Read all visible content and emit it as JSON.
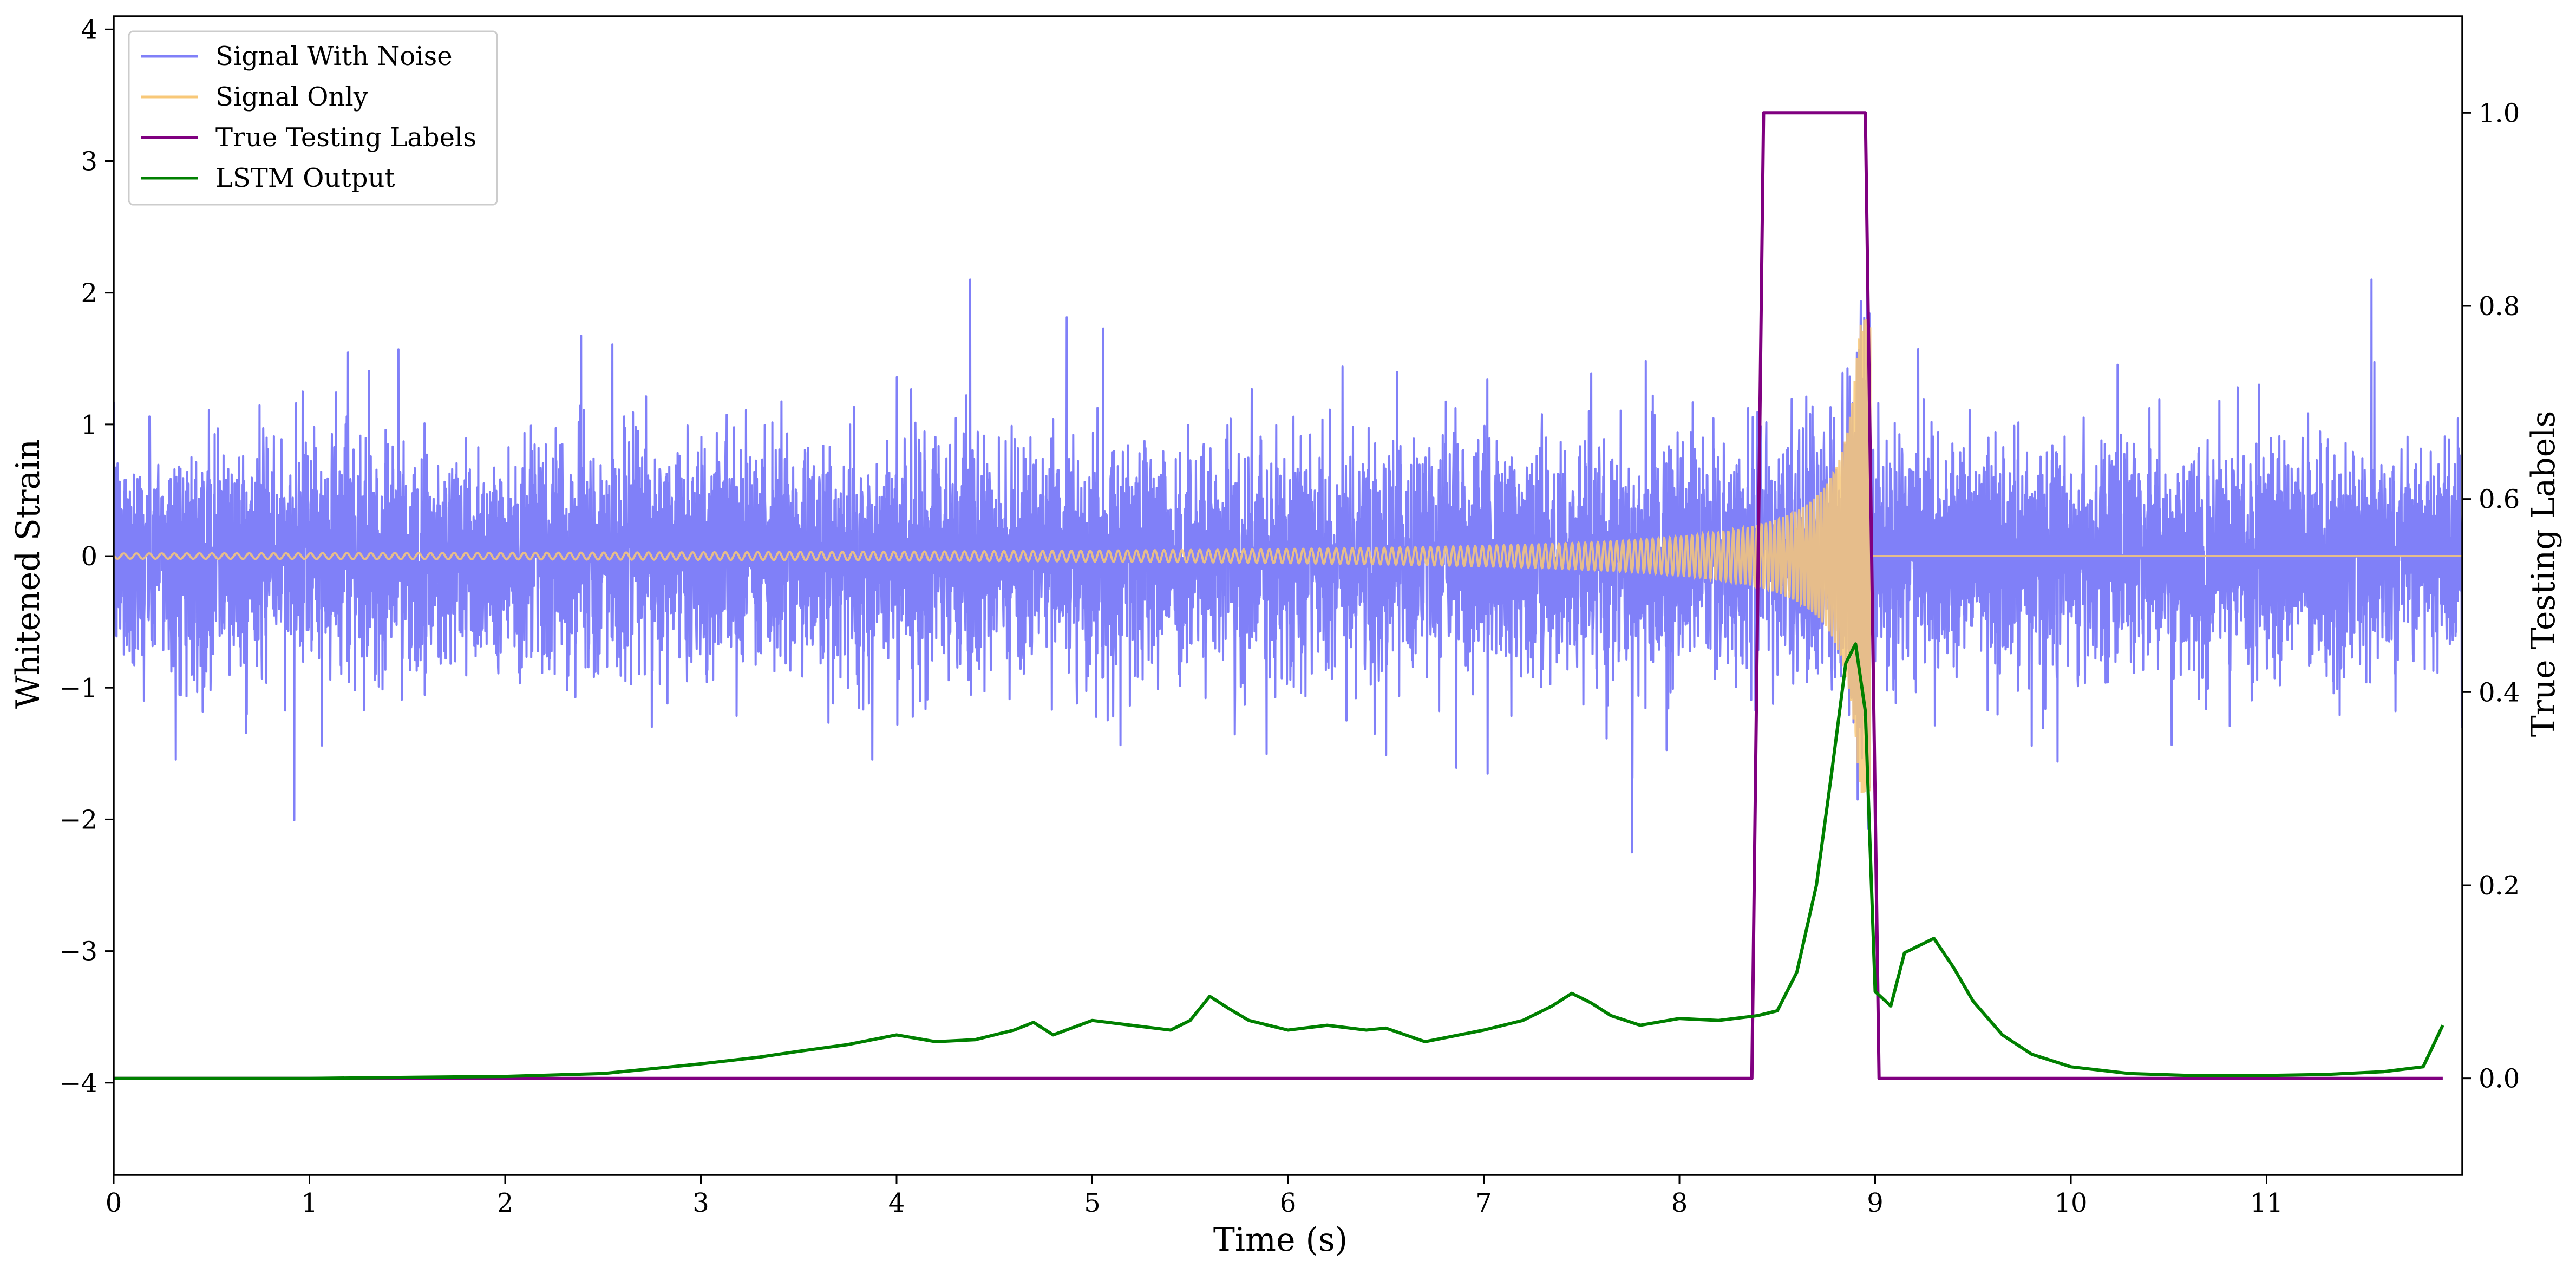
{
  "chart_data": {
    "type": "line",
    "xlabel": "Time (s)",
    "ylabel": "Whitened Strain",
    "ylabel_right": "True Testing Labels",
    "xlim": [
      0,
      12.0
    ],
    "ylim": [
      -4.7,
      4.1
    ],
    "ylim_right": [
      -0.1,
      1.1
    ],
    "x_ticks": [
      0,
      1,
      2,
      3,
      4,
      5,
      6,
      7,
      8,
      9,
      10,
      11
    ],
    "y_ticks": [
      {
        "value": 4,
        "label": "4"
      },
      {
        "value": 3,
        "label": "3"
      },
      {
        "value": 2,
        "label": "2"
      },
      {
        "value": 1,
        "label": "1"
      },
      {
        "value": 0,
        "label": "0"
      },
      {
        "value": -1,
        "label": "−1"
      },
      {
        "value": -2,
        "label": "−2"
      },
      {
        "value": -3,
        "label": "−3"
      },
      {
        "value": -4,
        "label": "−4"
      }
    ],
    "y_right_ticks": [
      {
        "value": 1.0,
        "label": "1.0"
      },
      {
        "value": 0.8,
        "label": "0.8"
      },
      {
        "value": 0.6,
        "label": "0.6"
      },
      {
        "value": 0.4,
        "label": "0.4"
      },
      {
        "value": 0.2,
        "label": "0.2"
      },
      {
        "value": 0.0,
        "label": "0.0"
      }
    ],
    "grid": false,
    "legend_position": "top-left",
    "series": [
      {
        "name": "Signal With Noise",
        "color": "#8080f8",
        "axis": "left",
        "description_note": "noise",
        "amplitude_std": 0.42,
        "x_start": 0,
        "x_end": 12.0,
        "peak_max": 2.1,
        "peak_min": -2.25
      },
      {
        "name": "Signal Only",
        "color": "#f8c878",
        "axis": "left",
        "chirp": {
          "t_merge": 8.98,
          "amp_peak": 1.8,
          "x_start": 0,
          "x_end": 12.0
        }
      },
      {
        "name": "True Testing Labels",
        "color": "#800080",
        "axis": "right",
        "x": [
          0.0,
          8.37,
          8.43,
          8.95,
          9.02,
          11.9
        ],
        "y": [
          0.0,
          0.0,
          1.0,
          1.0,
          0.0,
          0.0
        ]
      },
      {
        "name": "LSTM Output",
        "color": "#008000",
        "axis": "right",
        "x": [
          0.0,
          1.0,
          2.0,
          2.5,
          3.0,
          3.3,
          3.5,
          3.75,
          4.0,
          4.2,
          4.4,
          4.6,
          4.7,
          4.8,
          5.0,
          5.2,
          5.4,
          5.5,
          5.6,
          5.7,
          5.8,
          6.0,
          6.2,
          6.4,
          6.5,
          6.7,
          6.8,
          7.0,
          7.2,
          7.35,
          7.45,
          7.55,
          7.65,
          7.8,
          8.0,
          8.2,
          8.4,
          8.5,
          8.6,
          8.7,
          8.78,
          8.85,
          8.9,
          8.95,
          9.0,
          9.08,
          9.15,
          9.3,
          9.4,
          9.5,
          9.65,
          9.8,
          10.0,
          10.3,
          10.6,
          11.0,
          11.3,
          11.6,
          11.8,
          11.9
        ],
        "y": [
          0.0,
          0.0,
          0.002,
          0.005,
          0.015,
          0.022,
          0.028,
          0.035,
          0.045,
          0.038,
          0.04,
          0.05,
          0.058,
          0.045,
          0.06,
          0.055,
          0.05,
          0.06,
          0.085,
          0.072,
          0.06,
          0.05,
          0.055,
          0.05,
          0.052,
          0.038,
          0.042,
          0.05,
          0.06,
          0.075,
          0.088,
          0.078,
          0.065,
          0.055,
          0.062,
          0.06,
          0.065,
          0.07,
          0.11,
          0.2,
          0.32,
          0.43,
          0.45,
          0.38,
          0.09,
          0.075,
          0.13,
          0.145,
          0.115,
          0.08,
          0.045,
          0.025,
          0.012,
          0.005,
          0.003,
          0.003,
          0.004,
          0.007,
          0.012,
          0.055
        ]
      }
    ]
  }
}
